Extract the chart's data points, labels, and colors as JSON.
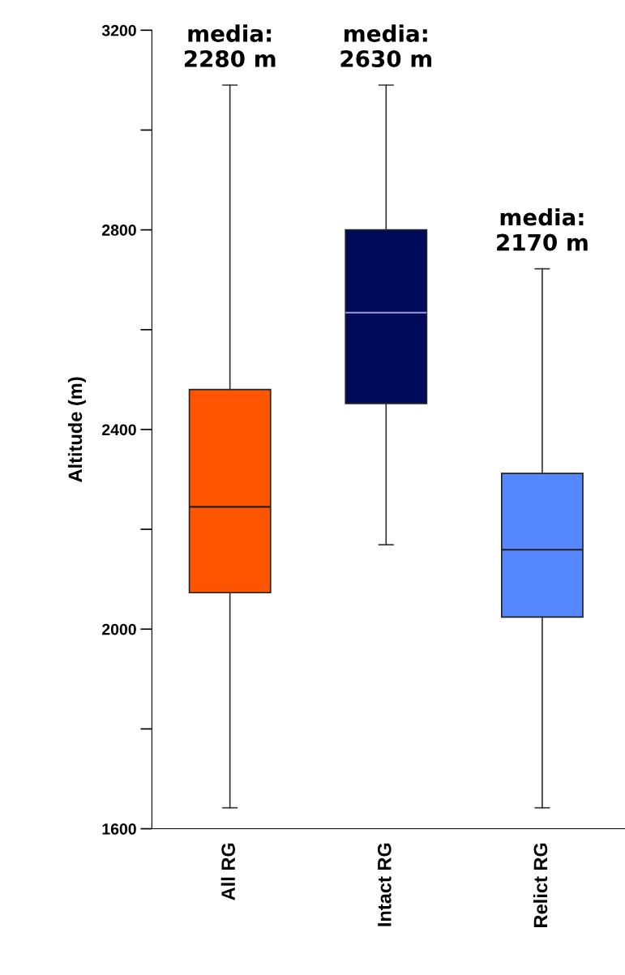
{
  "chart_data": {
    "type": "box",
    "ylabel": "Altitude (m)",
    "categories": [
      "All RG",
      "Intact RG",
      "Relict RG"
    ],
    "colors": [
      "#ff5500",
      "#000a5a",
      "#5588ff"
    ],
    "boxes": [
      {
        "low": 1642,
        "q1": 2073,
        "median": 2245,
        "q3": 2480,
        "high": 3090
      },
      {
        "low": 2169,
        "q1": 2452,
        "median": 2634,
        "q3": 2800,
        "high": 3090
      },
      {
        "low": 1642,
        "q1": 2024,
        "median": 2159,
        "q3": 2312,
        "high": 2722
      }
    ],
    "annotations": [
      "media:\n2280 m",
      "media:\n2630 m",
      "media:\n2170 m"
    ],
    "ylim": [
      1600,
      3200
    ],
    "yticks": [
      1600,
      {
        "value": 1800,
        "label": null
      },
      2000,
      {
        "value": 2200,
        "label": null
      },
      2400,
      {
        "value": 2600,
        "label": null
      },
      2800,
      {
        "value": 3000,
        "label": null
      },
      3200
    ],
    "grid": false,
    "legend": false
  }
}
